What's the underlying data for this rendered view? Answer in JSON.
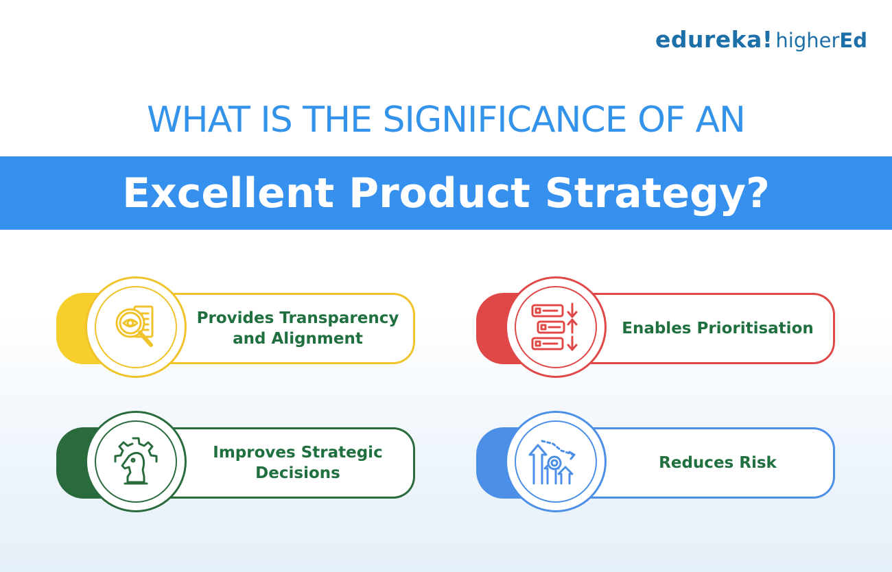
{
  "brand": {
    "name_part1": "edureka!",
    "name_part2_light": "higher",
    "name_part2_bold": "Ed"
  },
  "title": {
    "line1": "WHAT IS THE SIGNIFICANCE OF AN",
    "line2": "Excellent Product Strategy?"
  },
  "cards": [
    {
      "label": "Provides Transparency and Alignment",
      "icon": "magnifier-eye-icon",
      "color": "#f0c32a"
    },
    {
      "label": "Enables Prioritisation",
      "icon": "priority-list-icon",
      "color": "#e04848"
    },
    {
      "label": "Improves Strategic Decisions",
      "icon": "chess-knight-gear-icon",
      "color": "#2a6b3e"
    },
    {
      "label": "Reduces Risk",
      "icon": "risk-chart-gear-icon",
      "color": "#4b8fe6"
    }
  ],
  "colors": {
    "headline": "#3393ea",
    "banner": "#3690ee",
    "label_text": "#1f6f3f",
    "brand": "#1d6fa8"
  }
}
